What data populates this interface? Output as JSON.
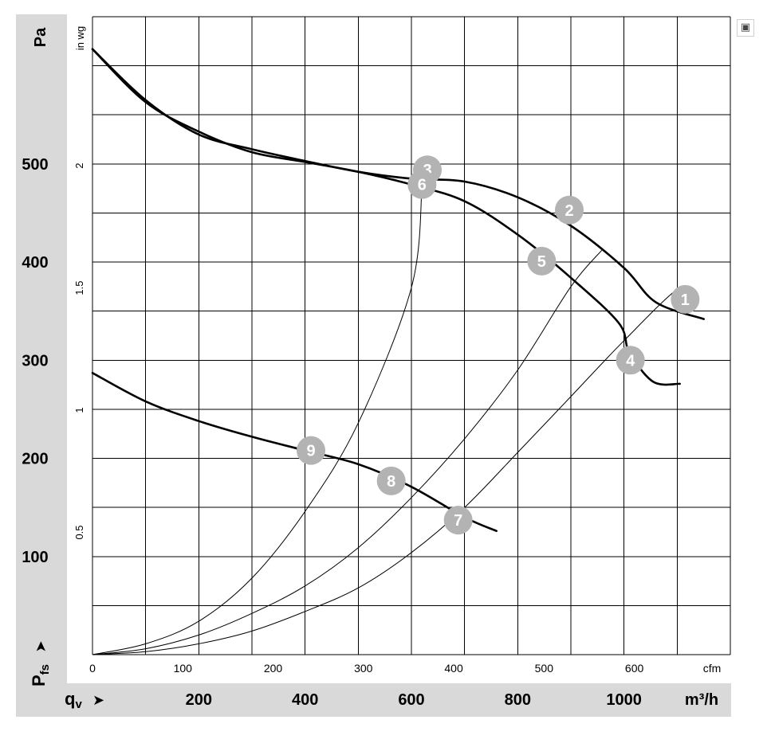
{
  "colors": {
    "band": "#d9d9d9",
    "grid": "#000000",
    "curve": "#000000",
    "marker_fill": "#b3b3b3",
    "marker_text": "#ffffff"
  },
  "icons": {
    "corner": "expand-icon"
  },
  "chart_data": {
    "type": "line",
    "title": "",
    "y_axis": {
      "label": "Pa",
      "label_pfs": "P",
      "label_pfs_sub": "fs",
      "arrow": "➤",
      "range": [
        0,
        650
      ],
      "ticks": [
        100,
        200,
        300,
        400,
        500
      ]
    },
    "y2_axis": {
      "label": "in wg",
      "ticks": [
        "0.5",
        "1",
        "1.5",
        "2"
      ],
      "tick_values": [
        0.5,
        1,
        1.5,
        2
      ]
    },
    "x_axis": {
      "label": "cfm",
      "range": [
        0,
        1200
      ],
      "ticks": [
        "0",
        "100",
        "200",
        "300",
        "400",
        "500",
        "600"
      ],
      "tick_values": [
        0,
        100,
        200,
        300,
        400,
        500,
        600
      ]
    },
    "x2_axis": {
      "label": "m³/h",
      "label_qv": "q",
      "label_qv_sub": "v",
      "arrow": "➤",
      "ticks": [
        "200",
        "400",
        "600",
        "800",
        "1000"
      ],
      "tick_values": [
        200,
        400,
        600,
        800,
        1000
      ]
    },
    "grid": true,
    "fan_curves": [
      {
        "name": "",
        "points": [
          [
            0,
            617
          ],
          [
            100,
            565
          ],
          [
            200,
            530
          ],
          [
            300,
            515
          ],
          [
            400,
            503
          ],
          [
            500,
            492
          ],
          [
            600,
            485
          ],
          [
            700,
            482
          ],
          [
            800,
            466
          ],
          [
            900,
            437
          ],
          [
            1000,
            394
          ],
          [
            1060,
            359
          ],
          [
            1150,
            342
          ]
        ]
      },
      {
        "name": "",
        "points": [
          [
            0,
            617
          ],
          [
            100,
            563
          ],
          [
            200,
            533
          ],
          [
            300,
            512
          ],
          [
            400,
            502
          ],
          [
            500,
            492
          ],
          [
            600,
            479
          ],
          [
            700,
            462
          ],
          [
            800,
            428
          ],
          [
            900,
            384
          ],
          [
            990,
            338
          ],
          [
            1010,
            308
          ],
          [
            1055,
            278
          ],
          [
            1105,
            276
          ]
        ]
      },
      {
        "name": "",
        "points": [
          [
            0,
            287
          ],
          [
            100,
            258
          ],
          [
            200,
            238
          ],
          [
            300,
            222
          ],
          [
            400,
            208
          ],
          [
            500,
            194
          ],
          [
            600,
            171
          ],
          [
            700,
            140
          ],
          [
            760,
            126
          ]
        ]
      }
    ],
    "system_curves": [
      {
        "name": "",
        "points": [
          [
            0,
            0
          ],
          [
            100,
            11
          ],
          [
            200,
            34
          ],
          [
            300,
            78
          ],
          [
            400,
            146
          ],
          [
            500,
            236
          ],
          [
            600,
            374
          ],
          [
            620,
            477
          ]
        ]
      },
      {
        "name": "",
        "points": [
          [
            0,
            0
          ],
          [
            100,
            6
          ],
          [
            200,
            20
          ],
          [
            300,
            42
          ],
          [
            400,
            70
          ],
          [
            500,
            109
          ],
          [
            600,
            160
          ],
          [
            700,
            220
          ],
          [
            800,
            290
          ],
          [
            900,
            375
          ],
          [
            958,
            412
          ]
        ]
      },
      {
        "name": "",
        "points": [
          [
            0,
            0
          ],
          [
            100,
            3
          ],
          [
            200,
            11
          ],
          [
            300,
            24
          ],
          [
            400,
            44
          ],
          [
            500,
            68
          ],
          [
            600,
            104
          ],
          [
            700,
            150
          ],
          [
            800,
            206
          ],
          [
            900,
            263
          ],
          [
            1000,
            320
          ],
          [
            1100,
            372
          ],
          [
            1115,
            360
          ]
        ]
      }
    ],
    "operating_points": [
      {
        "label": "1",
        "x": 1115,
        "y": 362
      },
      {
        "label": "2",
        "x": 897,
        "y": 453
      },
      {
        "label": "3",
        "x": 630,
        "y": 494
      },
      {
        "label": "4",
        "x": 1012,
        "y": 300
      },
      {
        "label": "5",
        "x": 845,
        "y": 401
      },
      {
        "label": "6",
        "x": 620,
        "y": 479
      },
      {
        "label": "7",
        "x": 688,
        "y": 137
      },
      {
        "label": "8",
        "x": 562,
        "y": 177
      },
      {
        "label": "9",
        "x": 411,
        "y": 208
      }
    ]
  }
}
